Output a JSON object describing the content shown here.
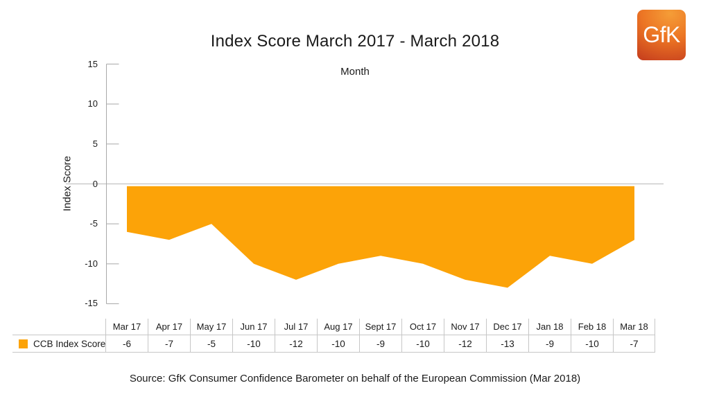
{
  "logo": {
    "text": "GfK",
    "gradient_top": "#f59d37",
    "gradient_mid": "#ec7524",
    "gradient_bottom": "#c33a1d"
  },
  "chart_data": {
    "type": "area",
    "title": "Index Score March 2017 - March 2018",
    "x_axis_title": "Month",
    "ylabel": "Index Score",
    "categories": [
      "Mar 17",
      "Apr 17",
      "May 17",
      "Jun 17",
      "Jul 17",
      "Aug 17",
      "Sept 17",
      "Oct 17",
      "Nov 17",
      "Dec 17",
      "Jan 18",
      "Feb 18",
      "Mar 18"
    ],
    "series": [
      {
        "name": "CCB Index Score",
        "values": [
          -6,
          -7,
          -5,
          -10,
          -12,
          -10,
          -9,
          -10,
          -12,
          -13,
          -9,
          -10,
          -7
        ]
      }
    ],
    "ylim": [
      -15,
      15
    ],
    "yticks": [
      15,
      10,
      5,
      0,
      -5,
      -10,
      -15
    ],
    "area_color": "#FCA308",
    "axis_color": "#a8a8a8",
    "zero_line_color": "#b8b8b8",
    "grid": "zero-line-only",
    "legend_position": "bottom-left",
    "source": "Source: GfK Consumer Confidence Barometer on behalf of the European Commission (Mar 2018)"
  }
}
